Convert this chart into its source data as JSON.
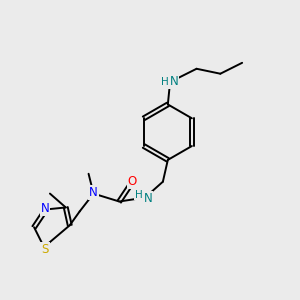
{
  "bg_color": "#ebebeb",
  "atom_colors": {
    "C": "#000000",
    "N": "#0000ff",
    "O": "#ff0000",
    "S": "#ccaa00",
    "NH": "#008080"
  },
  "bond_color": "#000000",
  "figsize": [
    3.0,
    3.0
  ],
  "dpi": 100,
  "lw": 1.4,
  "fs": 8.5,
  "fs_small": 7.5
}
